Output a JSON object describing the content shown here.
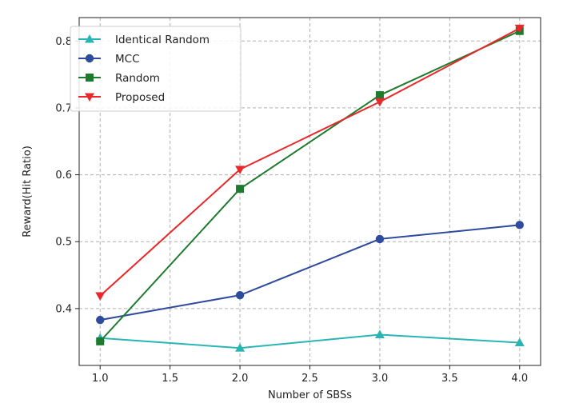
{
  "chart_data": {
    "type": "line",
    "title": "",
    "xlabel": "Number of SBSs",
    "ylabel": "Reward(Hit Ratio)",
    "xlim": [
      0.85,
      4.15
    ],
    "ylim": [
      0.315,
      0.835
    ],
    "xticks": [
      1.0,
      1.5,
      2.0,
      2.5,
      3.0,
      3.5,
      4.0
    ],
    "xtick_labels": [
      "1.0",
      "1.5",
      "2.0",
      "2.5",
      "3.0",
      "3.5",
      "4.0"
    ],
    "yticks": [
      0.4,
      0.5,
      0.6,
      0.7,
      0.8
    ],
    "ytick_labels": [
      "0.4",
      "0.5",
      "0.6",
      "0.7",
      "0.8"
    ],
    "grid": true,
    "legend_position": "top-left",
    "x": [
      1.0,
      2.0,
      3.0,
      4.0
    ],
    "series": [
      {
        "name": "Identical Random",
        "values": [
          0.356,
          0.341,
          0.361,
          0.349
        ],
        "color": "#2ab5b5",
        "marker": "triangle-up"
      },
      {
        "name": "MCC",
        "values": [
          0.383,
          0.42,
          0.504,
          0.525
        ],
        "color": "#2e4b9e",
        "marker": "circle"
      },
      {
        "name": "Random",
        "values": [
          0.351,
          0.579,
          0.719,
          0.815
        ],
        "color": "#1e7b2e",
        "marker": "square"
      },
      {
        "name": "Proposed",
        "values": [
          0.419,
          0.608,
          0.709,
          0.819
        ],
        "color": "#e8282a",
        "marker": "triangle-down"
      }
    ]
  }
}
